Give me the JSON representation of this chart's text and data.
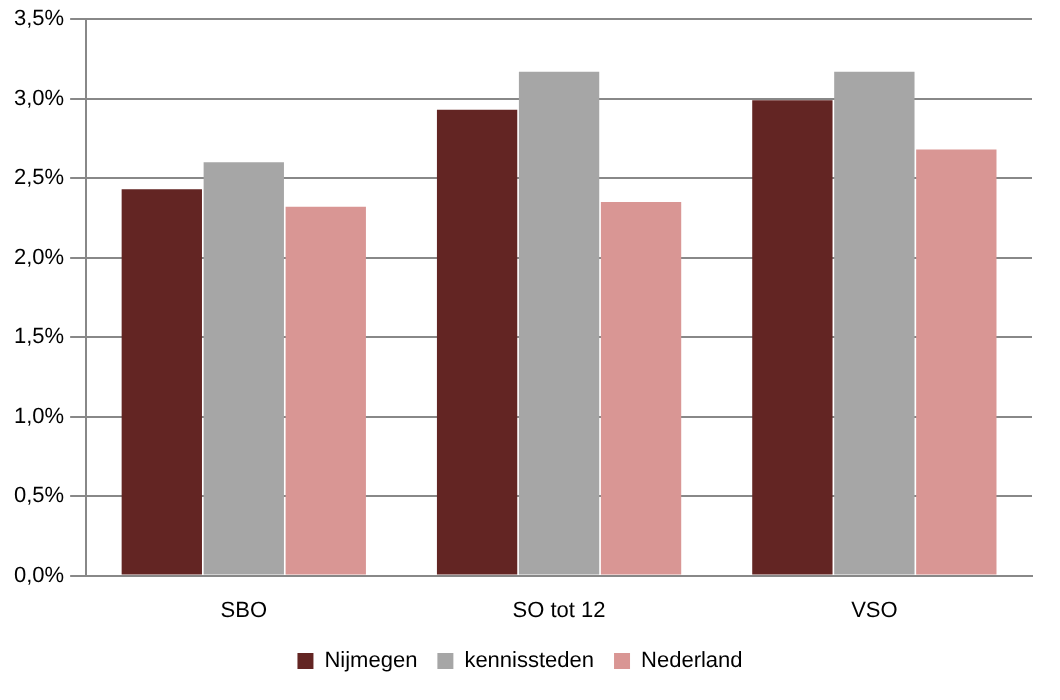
{
  "chart_data": {
    "type": "bar",
    "categories": [
      "SBO",
      "SO tot 12",
      "VSO"
    ],
    "series": [
      {
        "name": "Nijmegen",
        "color": "#632523",
        "values": [
          2.43,
          2.93,
          2.99
        ]
      },
      {
        "name": "kennissteden",
        "color": "#a6a6a6",
        "values": [
          2.6,
          3.17,
          3.17
        ]
      },
      {
        "name": "Nederland",
        "color": "#d99694",
        "values": [
          2.32,
          2.35,
          2.68
        ]
      }
    ],
    "ylim": [
      0,
      3.5
    ],
    "yticks": [
      {
        "value": 0,
        "label": "0,0%"
      },
      {
        "value": 0.5,
        "label": "0,5%"
      },
      {
        "value": 1,
        "label": "1,0%"
      },
      {
        "value": 1.5,
        "label": "1,5%"
      },
      {
        "value": 2,
        "label": "2,0%"
      },
      {
        "value": 2.5,
        "label": "2,5%"
      },
      {
        "value": 3,
        "label": "3,0%"
      },
      {
        "value": 3.5,
        "label": "3,5%"
      }
    ],
    "grid": "y",
    "legend": "bottom"
  }
}
